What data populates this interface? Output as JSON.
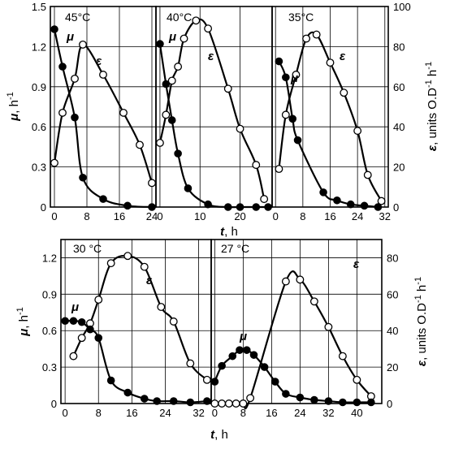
{
  "chart_data": {
    "type": "line",
    "series_symbols": {
      "mu": "filled circles",
      "epsilon": "open circles"
    },
    "y_left_label_symbol": "μ",
    "y_left_label_unit": ",  h",
    "y_left_label_exp": "-1",
    "y_right_label_symbol": "ε",
    "y_right_label_a": ", units O.D",
    "y_right_label_exp1": "-1",
    "y_right_label_b": " h",
    "y_right_label_exp2": "-1",
    "x_label_symbol": "t",
    "x_label_unit": ", h",
    "panels": [
      {
        "condition": "45°C",
        "xlim": [
          -1,
          25
        ],
        "xticks": [
          "0",
          "8",
          "16",
          "24"
        ],
        "xtick_values": [
          0,
          8,
          16,
          24
        ],
        "ylim": [
          0,
          1.5
        ],
        "yticks": [
          "0",
          "0.3",
          "0.6",
          "0.9",
          "1.2",
          "1.5"
        ],
        "ytick_values": [
          0,
          0.3,
          0.6,
          0.9,
          1.2,
          1.5
        ],
        "y2ticks": [
          "0",
          "20",
          "40",
          "60",
          "80",
          "100"
        ],
        "y2tick_values": [
          0,
          20,
          40,
          60,
          80,
          100
        ],
        "mu": {
          "label": "μ",
          "x": [
            0,
            2,
            5,
            7,
            12,
            18,
            24
          ],
          "y": [
            1.33,
            1.05,
            0.67,
            0.22,
            0.06,
            0.01,
            0.0
          ]
        },
        "epsilon": {
          "label": "ε",
          "x": [
            0,
            2,
            5,
            7,
            12,
            17,
            21,
            24
          ],
          "y": [
            22,
            47,
            64,
            81,
            66,
            47,
            31,
            12
          ]
        }
      },
      {
        "condition": "40°C",
        "xlim": [
          -1,
          28
        ],
        "xticks": [
          "0",
          "10",
          "20"
        ],
        "xtick_values": [
          0,
          10,
          20
        ],
        "ylim": [
          0,
          1.5
        ],
        "yticks": [
          "0",
          "0.3",
          "0.6",
          "0.9",
          "1.2",
          "1.5"
        ],
        "ytick_values": [
          0,
          0.3,
          0.6,
          0.9,
          1.2,
          1.5
        ],
        "y2ticks": [
          "0",
          "20",
          "40",
          "60",
          "80",
          "100"
        ],
        "y2tick_values": [
          0,
          20,
          40,
          60,
          80,
          100
        ],
        "mu": {
          "label": "μ",
          "x": [
            0,
            1.5,
            3,
            4.5,
            7,
            12,
            17,
            20,
            24,
            27
          ],
          "y": [
            1.22,
            0.92,
            0.65,
            0.4,
            0.14,
            0.02,
            0.0,
            0.0,
            0.0,
            0.0
          ]
        },
        "epsilon": {
          "label": "ε",
          "x": [
            0,
            1.5,
            3,
            4.5,
            6,
            9,
            12,
            17,
            20,
            24,
            26
          ],
          "y": [
            32,
            46,
            63,
            70,
            84,
            93,
            89,
            59,
            39,
            21,
            4
          ]
        }
      },
      {
        "condition": "35°C",
        "xlim": [
          -1,
          33
        ],
        "xticks": [
          "0",
          "8",
          "16",
          "24",
          "32"
        ],
        "xtick_values": [
          0,
          8,
          16,
          24,
          32
        ],
        "ylim": [
          0,
          1.5
        ],
        "yticks": [
          "0",
          "0.3",
          "0.6",
          "0.9",
          "1.2",
          "1.5"
        ],
        "ytick_values": [
          0,
          0.3,
          0.6,
          0.9,
          1.2,
          1.5
        ],
        "y2ticks": [
          "0",
          "20",
          "40",
          "60",
          "80",
          "100"
        ],
        "y2tick_values": [
          0,
          20,
          40,
          60,
          80,
          100
        ],
        "mu": {
          "label": "μ",
          "x": [
            1,
            3,
            5,
            6.5,
            14,
            18,
            22,
            26,
            30
          ],
          "y": [
            1.09,
            0.97,
            0.66,
            0.5,
            0.11,
            0.05,
            0.02,
            0.01,
            0.0
          ]
        },
        "epsilon": {
          "label": "ε",
          "x": [
            1,
            3,
            6,
            9,
            12,
            16,
            20,
            24,
            27,
            31
          ],
          "y": [
            19,
            46,
            66,
            84,
            86,
            72,
            57,
            38,
            16,
            3
          ]
        }
      },
      {
        "condition": "30 °C",
        "xlim": [
          -1,
          35
        ],
        "xticks": [
          "0",
          "8",
          "16",
          "24",
          "32"
        ],
        "xtick_values": [
          0,
          8,
          16,
          24,
          32
        ],
        "ylim": [
          0,
          1.35
        ],
        "yticks": [
          "0",
          "0.3",
          "0.6",
          "0.9",
          "1.2"
        ],
        "ytick_values": [
          0,
          0.3,
          0.6,
          0.9,
          1.2
        ],
        "y2ticks": [
          "0",
          "20",
          "40",
          "60",
          "80"
        ],
        "y2tick_values": [
          0,
          20,
          40,
          60,
          80
        ],
        "mu": {
          "label": "μ",
          "x": [
            0,
            2,
            4,
            6,
            8,
            11,
            15,
            19,
            22,
            26,
            30,
            34
          ],
          "y": [
            0.68,
            0.68,
            0.67,
            0.61,
            0.54,
            0.19,
            0.09,
            0.04,
            0.02,
            0.02,
            0.01,
            0.02
          ]
        },
        "epsilon": {
          "label": "ε",
          "x": [
            2,
            4,
            6,
            8,
            11,
            15,
            19,
            23,
            26,
            30,
            34
          ],
          "y": [
            26,
            36,
            44,
            57,
            77,
            81,
            75,
            53,
            45,
            22,
            13
          ]
        }
      },
      {
        "condition": "27 °C",
        "xlim": [
          -1,
          47
        ],
        "xticks": [
          "0",
          "8",
          "16",
          "24",
          "32",
          "40"
        ],
        "xtick_values": [
          0,
          8,
          16,
          24,
          32,
          40
        ],
        "ylim": [
          0,
          1.35
        ],
        "yticks": [
          "0",
          "0.3",
          "0.6",
          "0.9",
          "1.2"
        ],
        "ytick_values": [
          0,
          0.3,
          0.6,
          0.9,
          1.2
        ],
        "y2ticks": [
          "0",
          "20",
          "40",
          "60",
          "80"
        ],
        "y2tick_values": [
          0,
          20,
          40,
          60,
          80
        ],
        "mu": {
          "label": "μ",
          "x": [
            0,
            2,
            5,
            7,
            9,
            11,
            14,
            17,
            20,
            24,
            28,
            32,
            36,
            40,
            44
          ],
          "y": [
            0.18,
            0.31,
            0.39,
            0.44,
            0.44,
            0.4,
            0.3,
            0.18,
            0.08,
            0.05,
            0.03,
            0.02,
            0.01,
            0.01,
            0.01
          ]
        },
        "epsilon": {
          "label": "ε",
          "x": [
            0,
            2,
            4,
            6,
            8,
            10,
            20,
            24,
            28,
            32,
            36,
            40,
            44
          ],
          "y": [
            0,
            0,
            0,
            0,
            0,
            3,
            67,
            68,
            56,
            42,
            26,
            13,
            4
          ]
        }
      }
    ]
  }
}
